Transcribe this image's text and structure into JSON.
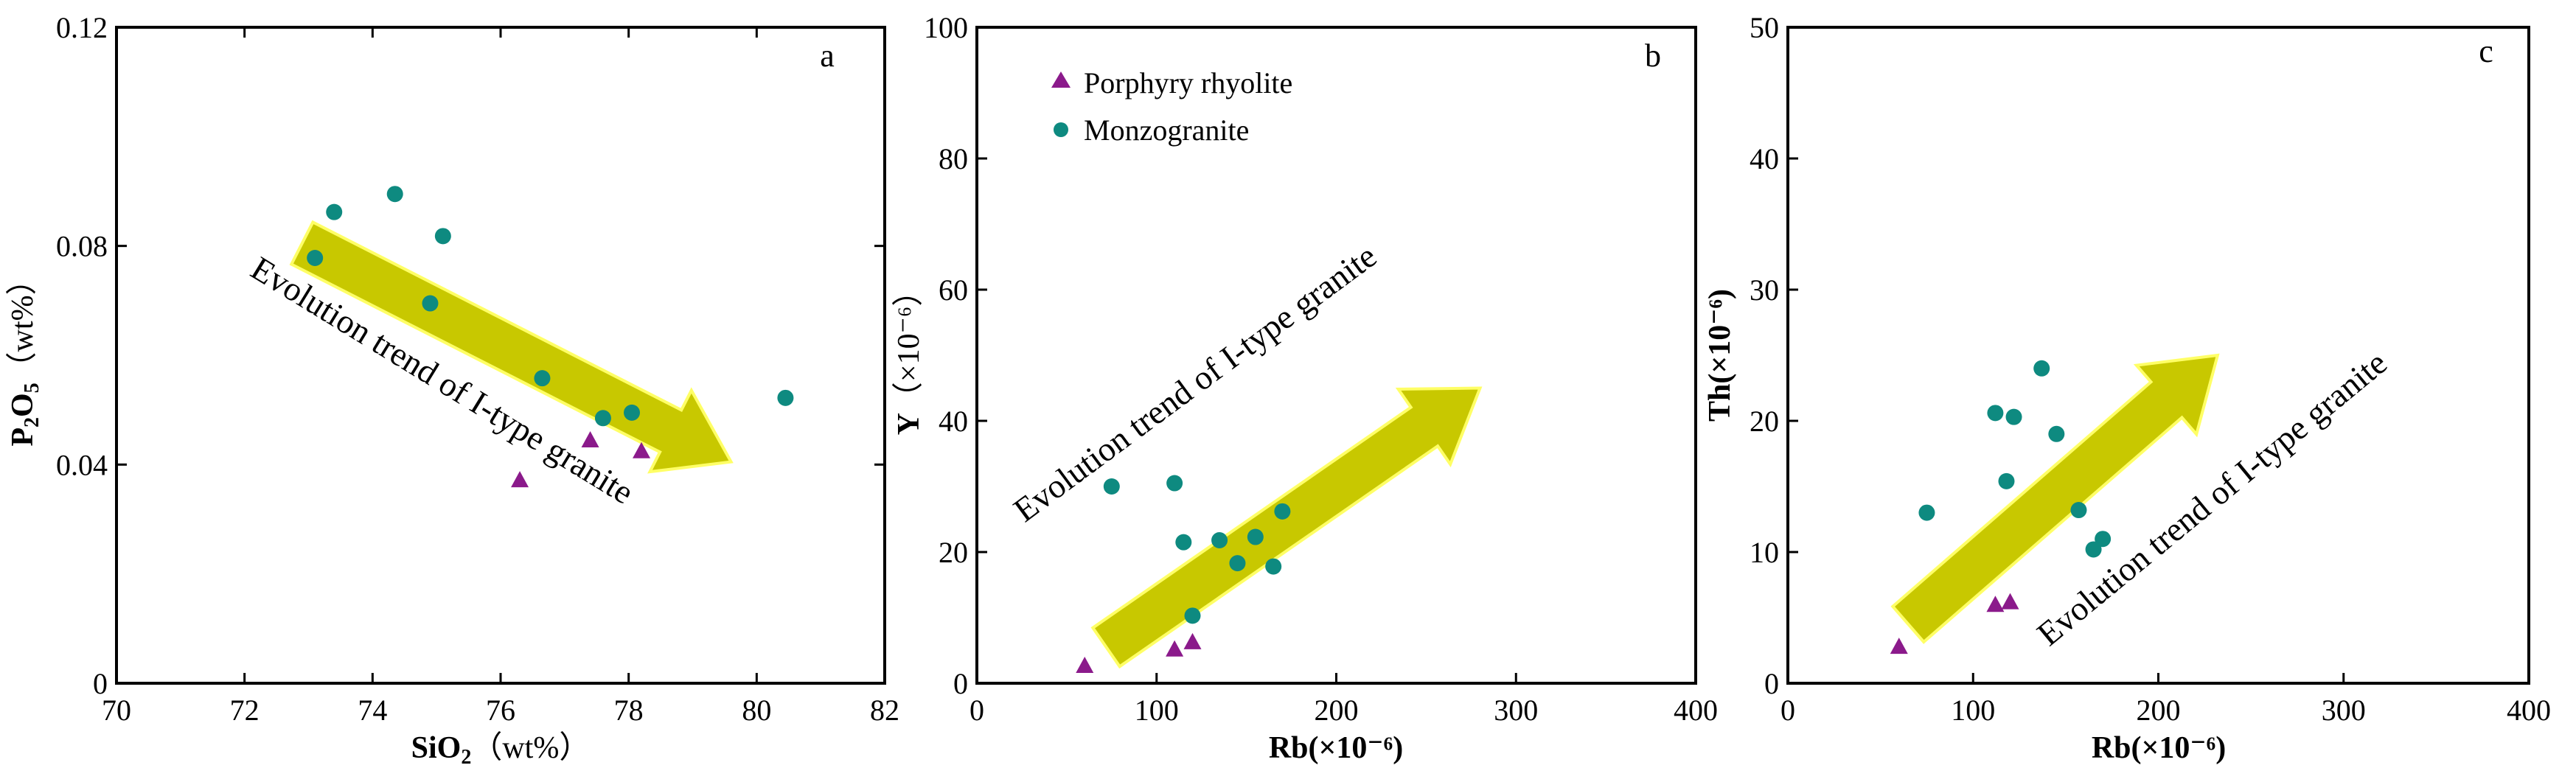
{
  "colors": {
    "rhyolite": "#8b1a8b",
    "monzogranite": "#0e8a80",
    "arrow_fill": "#c8c800",
    "arrow_stroke": "#ffff66"
  },
  "legend": {
    "rhyolite_label": "Porphyry rhyolite",
    "monzogranite_label": "Monzogranite"
  },
  "chart_data": [
    {
      "id": "a",
      "type": "scatter",
      "panel_label": "a",
      "xlabel_main": "SiO",
      "xlabel_sub": "2",
      "xlabel_unit": "（wt%）",
      "ylabel_main": "P",
      "ylabel_sub1": "2",
      "ylabel_mid": "O",
      "ylabel_sub2": "5",
      "ylabel_unit": "（wt%）",
      "xlim": [
        70,
        82
      ],
      "ylim": [
        0,
        0.12
      ],
      "xticks": [
        70,
        72,
        74,
        76,
        78,
        80,
        82
      ],
      "yticks": [
        0,
        0.04,
        0.08,
        0.12
      ],
      "ytick_labels": [
        "0",
        "0.04",
        "0.08",
        "0.12"
      ],
      "series": [
        {
          "name": "Porphyry rhyolite",
          "marker": "triangle",
          "points": [
            [
              76.3,
              0.0372
            ],
            [
              77.4,
              0.0445
            ],
            [
              78.2,
              0.0425
            ]
          ]
        },
        {
          "name": "Monzogranite",
          "marker": "circle",
          "points": [
            [
              73.1,
              0.0778
            ],
            [
              73.4,
              0.0862
            ],
            [
              74.35,
              0.0895
            ],
            [
              75.1,
              0.0818
            ],
            [
              74.9,
              0.0695
            ],
            [
              76.65,
              0.0558
            ],
            [
              77.6,
              0.0485
            ],
            [
              78.05,
              0.0495
            ],
            [
              80.45,
              0.0522
            ]
          ]
        }
      ],
      "trend": {
        "label": "Evolution trend of I-type granite",
        "from": [
          72.9,
          0.0805
        ],
        "to": [
          79.6,
          0.0405
        ]
      }
    },
    {
      "id": "b",
      "type": "scatter",
      "panel_label": "b",
      "xlabel_main": "Rb",
      "xlabel_unit": "(×10⁻⁶)",
      "ylabel_main": "Y",
      "ylabel_unit": "（×10⁻⁶）",
      "xlim": [
        0,
        400
      ],
      "ylim": [
        0,
        100
      ],
      "xticks": [
        0,
        100,
        200,
        300,
        400
      ],
      "yticks": [
        0,
        20,
        40,
        60,
        80,
        100
      ],
      "series": [
        {
          "name": "Porphyry rhyolite",
          "marker": "triangle",
          "points": [
            [
              60,
              2.7
            ],
            [
              110,
              5.2
            ],
            [
              120,
              6.3
            ]
          ]
        },
        {
          "name": "Monzogranite",
          "marker": "circle",
          "points": [
            [
              75,
              30
            ],
            [
              110,
              30.5
            ],
            [
              115,
              21.5
            ],
            [
              120,
              10.3
            ],
            [
              135,
              21.8
            ],
            [
              145,
              18.3
            ],
            [
              155,
              22.3
            ],
            [
              165,
              17.8
            ],
            [
              170,
              26.2
            ]
          ]
        }
      ],
      "trend": {
        "label": "Evolution trend of I-type granite",
        "from": [
          72,
          5.5
        ],
        "to": [
          280,
          45
        ]
      }
    },
    {
      "id": "c",
      "type": "scatter",
      "panel_label": "c",
      "xlabel_main": "Rb",
      "xlabel_unit": "(×10⁻⁶)",
      "ylabel_main": "Th",
      "ylabel_unit": "(×10⁻⁶)",
      "xlim": [
        0,
        400
      ],
      "ylim": [
        0,
        50
      ],
      "xticks": [
        0,
        100,
        200,
        300,
        400
      ],
      "yticks": [
        0,
        10,
        20,
        30,
        40,
        50
      ],
      "series": [
        {
          "name": "Porphyry rhyolite",
          "marker": "triangle",
          "points": [
            [
              60,
              2.8
            ],
            [
              112,
              6
            ],
            [
              120,
              6.2
            ]
          ]
        },
        {
          "name": "Monzogranite",
          "marker": "circle",
          "points": [
            [
              75,
              13
            ],
            [
              112,
              20.6
            ],
            [
              118,
              15.4
            ],
            [
              122,
              20.3
            ],
            [
              137,
              24
            ],
            [
              145,
              19
            ],
            [
              157,
              13.2
            ],
            [
              165,
              10.2
            ],
            [
              170,
              11
            ]
          ]
        }
      ],
      "trend": {
        "label": "Evolution trend of I-type granite",
        "from": [
          65,
          4.5
        ],
        "to": [
          232,
          25
        ]
      }
    }
  ]
}
